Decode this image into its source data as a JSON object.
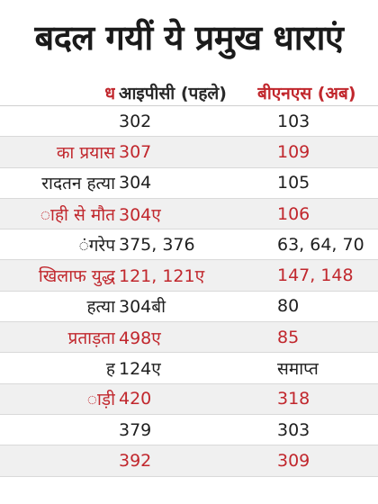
{
  "title": "बदल गयीं ये प्रमुख धाराएं",
  "columns": {
    "crime": "ध",
    "ipc": "आइपीसी (पहले)",
    "bns": "बीएनएस (अब)"
  },
  "rows": [
    {
      "crime": "",
      "ipc": "302",
      "bns": "103",
      "color": "dark"
    },
    {
      "crime": "का प्रयास",
      "ipc": "307",
      "bns": "109",
      "color": "red"
    },
    {
      "crime": "रादतन हत्या",
      "ipc": "304",
      "bns": "105",
      "color": "dark"
    },
    {
      "crime": "ाही से मौत",
      "ipc": "304ए",
      "bns": "106",
      "color": "red"
    },
    {
      "crime": "ंगरेप",
      "ipc": "375, 376",
      "bns": "63, 64, 70",
      "color": "dark"
    },
    {
      "crime": "खिलाफ युद्ध",
      "ipc": "121, 121ए",
      "bns": "147, 148",
      "color": "red"
    },
    {
      "crime": "हत्या",
      "ipc": "304बी",
      "bns": "80",
      "color": "dark"
    },
    {
      "crime": "प्रताड़ता",
      "ipc": "498ए",
      "bns": "85",
      "color": "red"
    },
    {
      "crime": "ह",
      "ipc": "124ए",
      "bns": "समाप्त",
      "color": "dark"
    },
    {
      "crime": "ाड़ी",
      "ipc": "420",
      "bns": "318",
      "color": "red"
    },
    {
      "crime": "",
      "ipc": "379",
      "bns": "303",
      "color": "dark"
    },
    {
      "crime": "",
      "ipc": "392",
      "bns": "309",
      "color": "red"
    }
  ]
}
